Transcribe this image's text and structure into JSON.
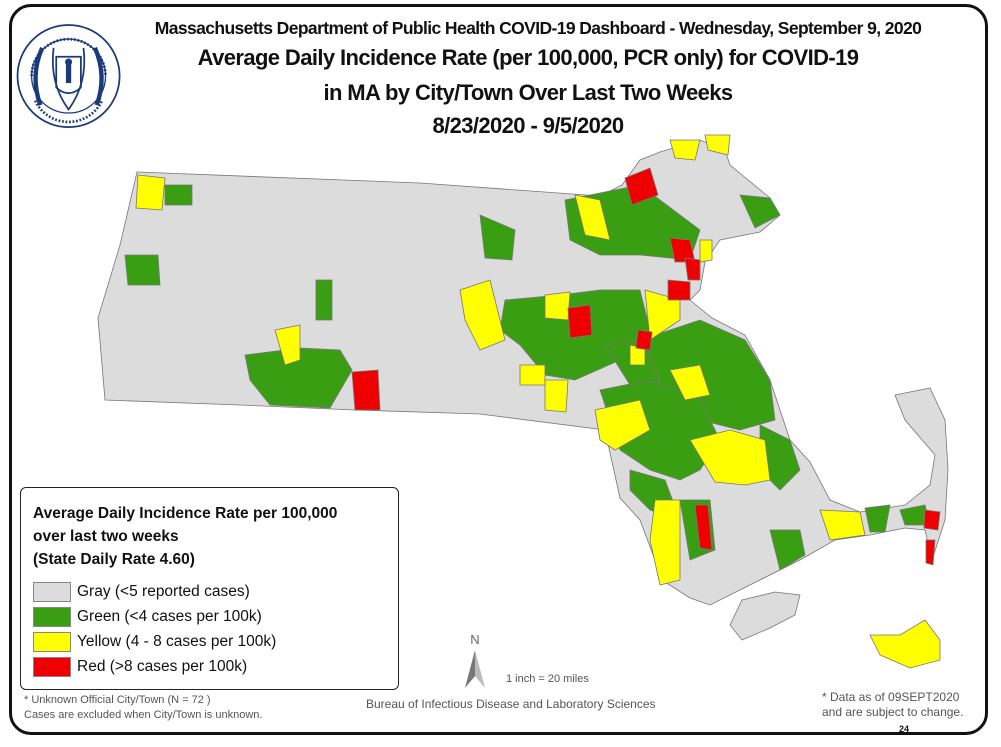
{
  "header": {
    "dashboard_title": "Massachusetts Department of Public Health COVID-19 Dashboard - Wednesday, September 9, 2020",
    "title_line1": "Average Daily Incidence Rate (per 100,000, PCR only) for COVID-19",
    "title_line2": "in MA by City/Town Over Last Two Weeks",
    "date_range": "8/23/2020 - 9/5/2020"
  },
  "seal": {
    "outer_text": "COMMONWEALTH OF MASSACHUSETTS",
    "inner_text": "DEPARTMENT OF PUBLIC HEALTH"
  },
  "legend": {
    "title_line1": "Average Daily Incidence Rate per 100,000",
    "title_line2": "over last two weeks",
    "title_line3": "(State Daily Rate 4.60)",
    "items": [
      {
        "label": "Gray (<5 reported cases)",
        "color": "#dcdcdc"
      },
      {
        "label": "Green (<4 cases per 100k)",
        "color": "#3a9e12"
      },
      {
        "label": "Yellow (4 - 8 cases per 100k)",
        "color": "#ffff00"
      },
      {
        "label": "Red (>8 cases per 100k)",
        "color": "#ee0000"
      }
    ]
  },
  "map": {
    "north_label": "N",
    "scale": "1 inch = 20 miles"
  },
  "footer": {
    "unknown_note_line1": "* Unknown Official City/Town (N = 72 )",
    "unknown_note_line2": "Cases are excluded when City/Town is unknown.",
    "bureau": "Bureau of Infectious Disease and Laboratory Sciences",
    "data_note_line1": "* Data as of 09SEPT2020",
    "data_note_line2": "and are subject to change.",
    "page_number": "24"
  }
}
